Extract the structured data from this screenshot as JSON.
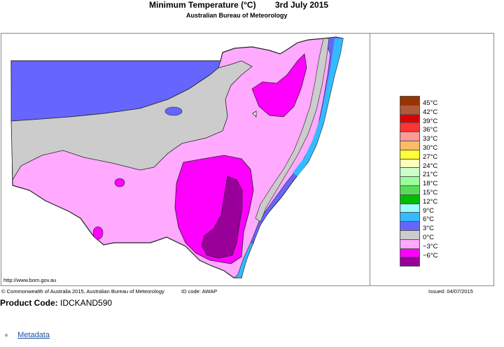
{
  "map": {
    "title": "Minimum Temperature (°C)",
    "date": "3rd July 2015",
    "source": "Australian Bureau of Meteorology",
    "url": "http://www.bom.gov.au",
    "copyright": "© Commonwealth of Australia 2015, Australian Bureau of Meteorology",
    "id_code": "ID code: AWAP",
    "issued": "Issued: 04/07/2015"
  },
  "legend": [
    {
      "label": "45°C",
      "color": "#993300"
    },
    {
      "label": "42°C",
      "color": "#b05a3c"
    },
    {
      "label": "39°C",
      "color": "#dd0000"
    },
    {
      "label": "36°C",
      "color": "#ff3333"
    },
    {
      "label": "33°C",
      "color": "#ff9999"
    },
    {
      "label": "30°C",
      "color": "#ffbb66"
    },
    {
      "label": "27°C",
      "color": "#ffff33"
    },
    {
      "label": "24°C",
      "color": "#ffffbb"
    },
    {
      "label": "21°C",
      "color": "#ccffcc"
    },
    {
      "label": "18°C",
      "color": "#99ff99"
    },
    {
      "label": "15°C",
      "color": "#55dd55"
    },
    {
      "label": "12°C",
      "color": "#00bb00"
    },
    {
      "label": "9°C",
      "color": "#99ffff"
    },
    {
      "label": "6°C",
      "color": "#33bbff"
    },
    {
      "label": "3°C",
      "color": "#6666ff"
    },
    {
      "label": "0°C",
      "color": "#cccccc"
    },
    {
      "label": "−3°C",
      "color": "#ffaaff"
    },
    {
      "label": "−6°C",
      "color": "#ff00ff"
    },
    {
      "label": "",
      "color": "#990099"
    }
  ],
  "product": {
    "label": "Product Code:",
    "code": "IDCKAND590"
  },
  "links": {
    "metadata": "Metadata"
  }
}
